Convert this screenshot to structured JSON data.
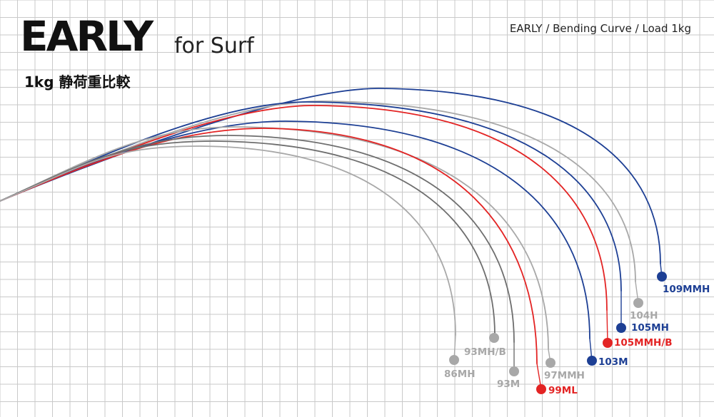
{
  "header": {
    "title": "EARLY",
    "title_suffix": "for Surf",
    "subtitle": "1kg 静荷重比較",
    "caption": "EARLY / Bending Curve / Load 1kg"
  },
  "colors": {
    "grid": "#c9c9c9",
    "blue": "#1d3f94",
    "red": "#e32424",
    "gray": "#a8a8a8",
    "darkgray": "#6e6e6e",
    "black": "#222222"
  },
  "chart_data": {
    "type": "line",
    "title": "EARLY / Bending Curve / Load 1kg",
    "grid": true,
    "series": [
      {
        "name": "109MMH",
        "color": "blue",
        "dot": "blue",
        "label_color": "blue",
        "peak": [
          530,
          124
        ],
        "end": [
          925,
          370
        ],
        "dotp": [
          927,
          388
        ],
        "label": [
          928,
          410
        ]
      },
      {
        "name": "104H",
        "color": "gray",
        "dot": "gray",
        "label_color": "gray",
        "peak": [
          450,
          142
        ],
        "end": [
          890,
          395
        ],
        "dotp": [
          894,
          425
        ],
        "label": [
          882,
          447
        ]
      },
      {
        "name": "105MH",
        "color": "blue",
        "dot": "blue",
        "label_color": "blue",
        "peak": [
          430,
          143
        ],
        "end": [
          870,
          408
        ],
        "dotp": [
          870,
          460
        ],
        "label": [
          884,
          464
        ]
      },
      {
        "name": "105MMH/B",
        "color": "red",
        "dot": "red",
        "label_color": "red",
        "peak": [
          440,
          148
        ],
        "end": [
          850,
          435
        ],
        "dotp": [
          851,
          481
        ],
        "label": [
          860,
          485
        ]
      },
      {
        "name": "103M",
        "color": "blue",
        "dot": "blue",
        "label_color": "blue",
        "peak": [
          400,
          170
        ],
        "end": [
          826,
          475
        ],
        "dotp": [
          829,
          506
        ],
        "label": [
          838,
          512
        ]
      },
      {
        "name": "97MMH",
        "color": "gray",
        "dot": "gray",
        "label_color": "gray",
        "peak": [
          330,
          178
        ],
        "end": [
          768,
          490
        ],
        "dotp": [
          771,
          509
        ],
        "label": [
          762,
          531
        ]
      },
      {
        "name": "99ML",
        "color": "red",
        "dot": "red",
        "label_color": "red",
        "peak": [
          370,
          180
        ],
        "end": [
          752,
          510
        ],
        "dotp": [
          758,
          546
        ],
        "label": [
          768,
          552
        ]
      },
      {
        "name": "93M",
        "color": "darkgray",
        "dot": "gray",
        "label_color": "gray",
        "peak": [
          320,
          190
        ],
        "end": [
          720,
          480
        ],
        "dotp": [
          720,
          521
        ],
        "label": [
          696,
          543
        ]
      },
      {
        "name": "93MH/B",
        "color": "darkgray",
        "dot": "gray",
        "label_color": "gray",
        "peak": [
          300,
          198
        ],
        "end": [
          693,
          470
        ],
        "dotp": [
          692,
          474
        ],
        "label": [
          650,
          498
        ]
      },
      {
        "name": "86MH",
        "color": "gray",
        "dot": "gray",
        "label_color": "gray",
        "peak": [
          280,
          205
        ],
        "end": [
          638,
          470
        ],
        "dotp": [
          636,
          505
        ],
        "label": [
          622,
          529
        ]
      }
    ]
  }
}
